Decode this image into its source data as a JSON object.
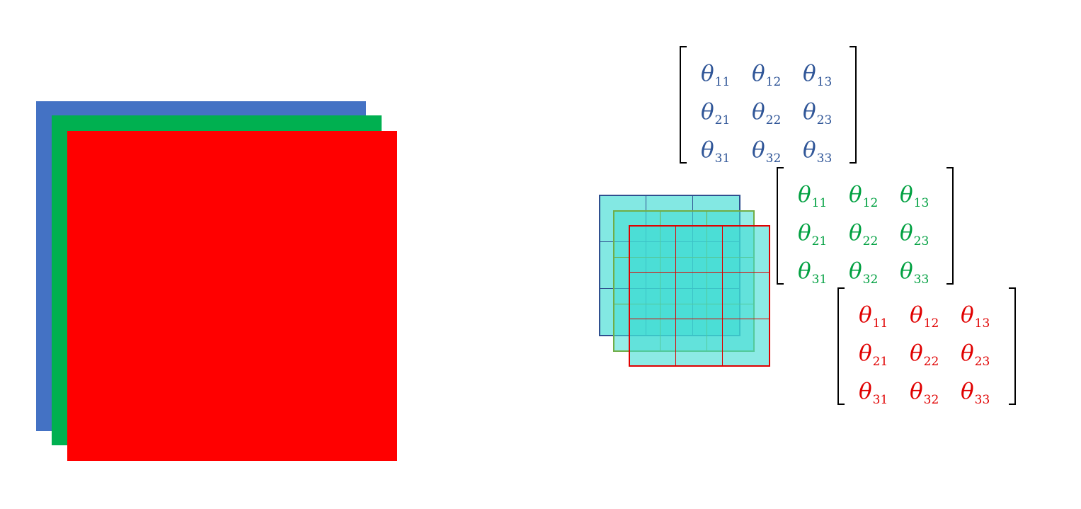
{
  "colors": {
    "blue": "#4472c4",
    "green": "#00b050",
    "red": "#ff0000",
    "kernel_fill": "#40dcd4",
    "blue_kernel_border": "#2f4f8f",
    "green_kernel_border": "#70ad47"
  },
  "input_channels": [
    {
      "name": "blue-channel",
      "color": "#4472c4"
    },
    {
      "name": "green-channel",
      "color": "#00b050"
    },
    {
      "name": "red-channel",
      "color": "#ff0000"
    }
  ],
  "matrix_symbol": "θ",
  "matrices": [
    {
      "name": "blue-theta-matrix",
      "color": "#2f5597",
      "entries": [
        [
          "θ",
          "11"
        ],
        [
          "θ",
          "12"
        ],
        [
          "θ",
          "13"
        ],
        [
          "θ",
          "21"
        ],
        [
          "θ",
          "22"
        ],
        [
          "θ",
          "23"
        ],
        [
          "θ",
          "31"
        ],
        [
          "θ",
          "32"
        ],
        [
          "θ",
          "33"
        ]
      ]
    },
    {
      "name": "green-theta-matrix",
      "color": "#00a040",
      "entries": [
        [
          "θ",
          "11"
        ],
        [
          "θ",
          "12"
        ],
        [
          "θ",
          "13"
        ],
        [
          "θ",
          "21"
        ],
        [
          "θ",
          "22"
        ],
        [
          "θ",
          "23"
        ],
        [
          "θ",
          "31"
        ],
        [
          "θ",
          "32"
        ],
        [
          "θ",
          "33"
        ]
      ]
    },
    {
      "name": "red-theta-matrix",
      "color": "#e00000",
      "entries": [
        [
          "θ",
          "11"
        ],
        [
          "θ",
          "12"
        ],
        [
          "θ",
          "13"
        ],
        [
          "θ",
          "21"
        ],
        [
          "θ",
          "22"
        ],
        [
          "θ",
          "23"
        ],
        [
          "θ",
          "31"
        ],
        [
          "θ",
          "32"
        ],
        [
          "θ",
          "33"
        ]
      ]
    }
  ]
}
